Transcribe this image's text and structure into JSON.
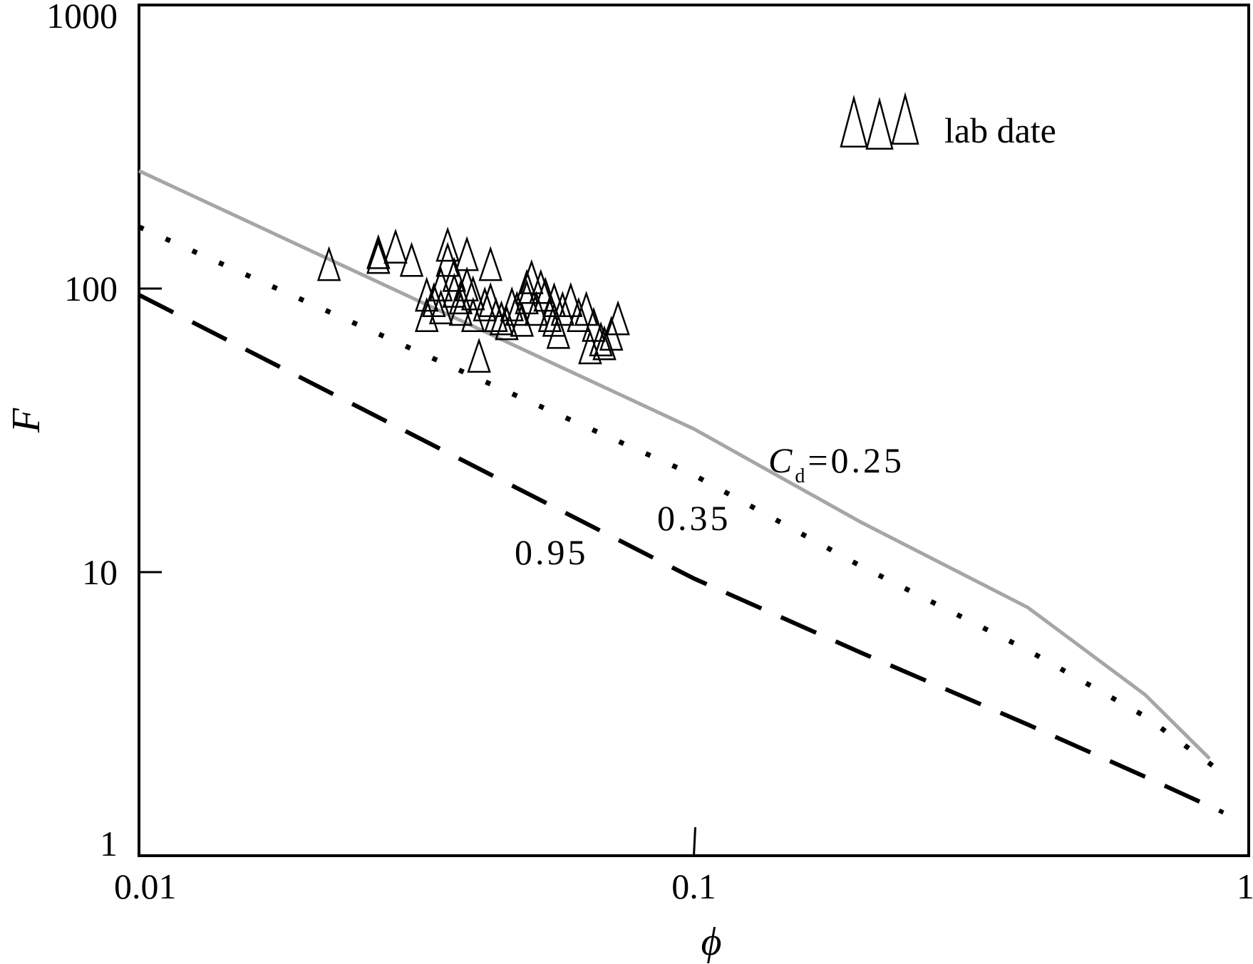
{
  "chart_data": {
    "type": "scatter",
    "xscale": "log",
    "yscale": "log",
    "xlim": [
      0.01,
      1
    ],
    "ylim": [
      1,
      1000
    ],
    "xlabel": "ϕ",
    "ylabel": "F",
    "xticks": [
      "0.01",
      "0.1",
      "1"
    ],
    "yticks": [
      "1",
      "10",
      "100",
      "1000"
    ],
    "grid": false,
    "legend": {
      "position": "top-right",
      "label": "lab date"
    },
    "series": [
      {
        "name": "lab date",
        "kind": "scatter",
        "marker": "open-triangle",
        "points": [
          [
            0.022,
            118
          ],
          [
            0.027,
            130
          ],
          [
            0.027,
            125
          ],
          [
            0.029,
            136
          ],
          [
            0.031,
            122
          ],
          [
            0.033,
            78
          ],
          [
            0.033,
            92
          ],
          [
            0.034,
            88
          ],
          [
            0.035,
            100
          ],
          [
            0.035,
            83
          ],
          [
            0.036,
            138
          ],
          [
            0.036,
            122
          ],
          [
            0.037,
            108
          ],
          [
            0.037,
            95
          ],
          [
            0.038,
            90
          ],
          [
            0.038,
            82
          ],
          [
            0.039,
            128
          ],
          [
            0.039,
            100
          ],
          [
            0.04,
            93
          ],
          [
            0.04,
            78
          ],
          [
            0.041,
            56
          ],
          [
            0.042,
            85
          ],
          [
            0.043,
            118
          ],
          [
            0.043,
            88
          ],
          [
            0.044,
            78
          ],
          [
            0.045,
            76
          ],
          [
            0.046,
            73
          ],
          [
            0.047,
            85
          ],
          [
            0.048,
            82
          ],
          [
            0.049,
            75
          ],
          [
            0.05,
            98
          ],
          [
            0.05,
            90
          ],
          [
            0.051,
            106
          ],
          [
            0.052,
            82
          ],
          [
            0.053,
            98
          ],
          [
            0.054,
            92
          ],
          [
            0.055,
            78
          ],
          [
            0.056,
            88
          ],
          [
            0.056,
            75
          ],
          [
            0.057,
            68
          ],
          [
            0.058,
            82
          ],
          [
            0.06,
            88
          ],
          [
            0.062,
            78
          ],
          [
            0.064,
            82
          ],
          [
            0.065,
            60
          ],
          [
            0.066,
            72
          ],
          [
            0.068,
            64
          ],
          [
            0.069,
            62
          ],
          [
            0.071,
            67
          ],
          [
            0.073,
            76
          ]
        ]
      },
      {
        "name": "0.25",
        "kind": "line",
        "color": "#a6a6a6",
        "dash": "solid",
        "points": [
          [
            0.01,
            260
          ],
          [
            0.1,
            32
          ],
          [
            0.2,
            15
          ],
          [
            0.4,
            7.5
          ],
          [
            0.65,
            3.7
          ],
          [
            0.85,
            2.2
          ]
        ]
      },
      {
        "name": "0.35",
        "kind": "line",
        "color": "#000000",
        "dash": "dotted",
        "points": [
          [
            0.01,
            165
          ],
          [
            0.1,
            22
          ],
          [
            0.2,
            10.5
          ],
          [
            0.4,
            5.3
          ],
          [
            0.65,
            3.1
          ],
          [
            0.9,
            1.95
          ]
        ]
      },
      {
        "name": "0.95",
        "kind": "line",
        "color": "#000000",
        "dash": "dashed",
        "points": [
          [
            0.01,
            95
          ],
          [
            0.1,
            9.5
          ],
          [
            0.2,
            5.2
          ],
          [
            0.4,
            2.9
          ],
          [
            0.65,
            1.9
          ],
          [
            0.9,
            1.42
          ]
        ]
      }
    ],
    "annotations": {
      "cd_symbol": "C",
      "cd_subscript": "d",
      "cd_value": "=0.25",
      "label_035": "0.35",
      "label_095": "0.95"
    }
  }
}
